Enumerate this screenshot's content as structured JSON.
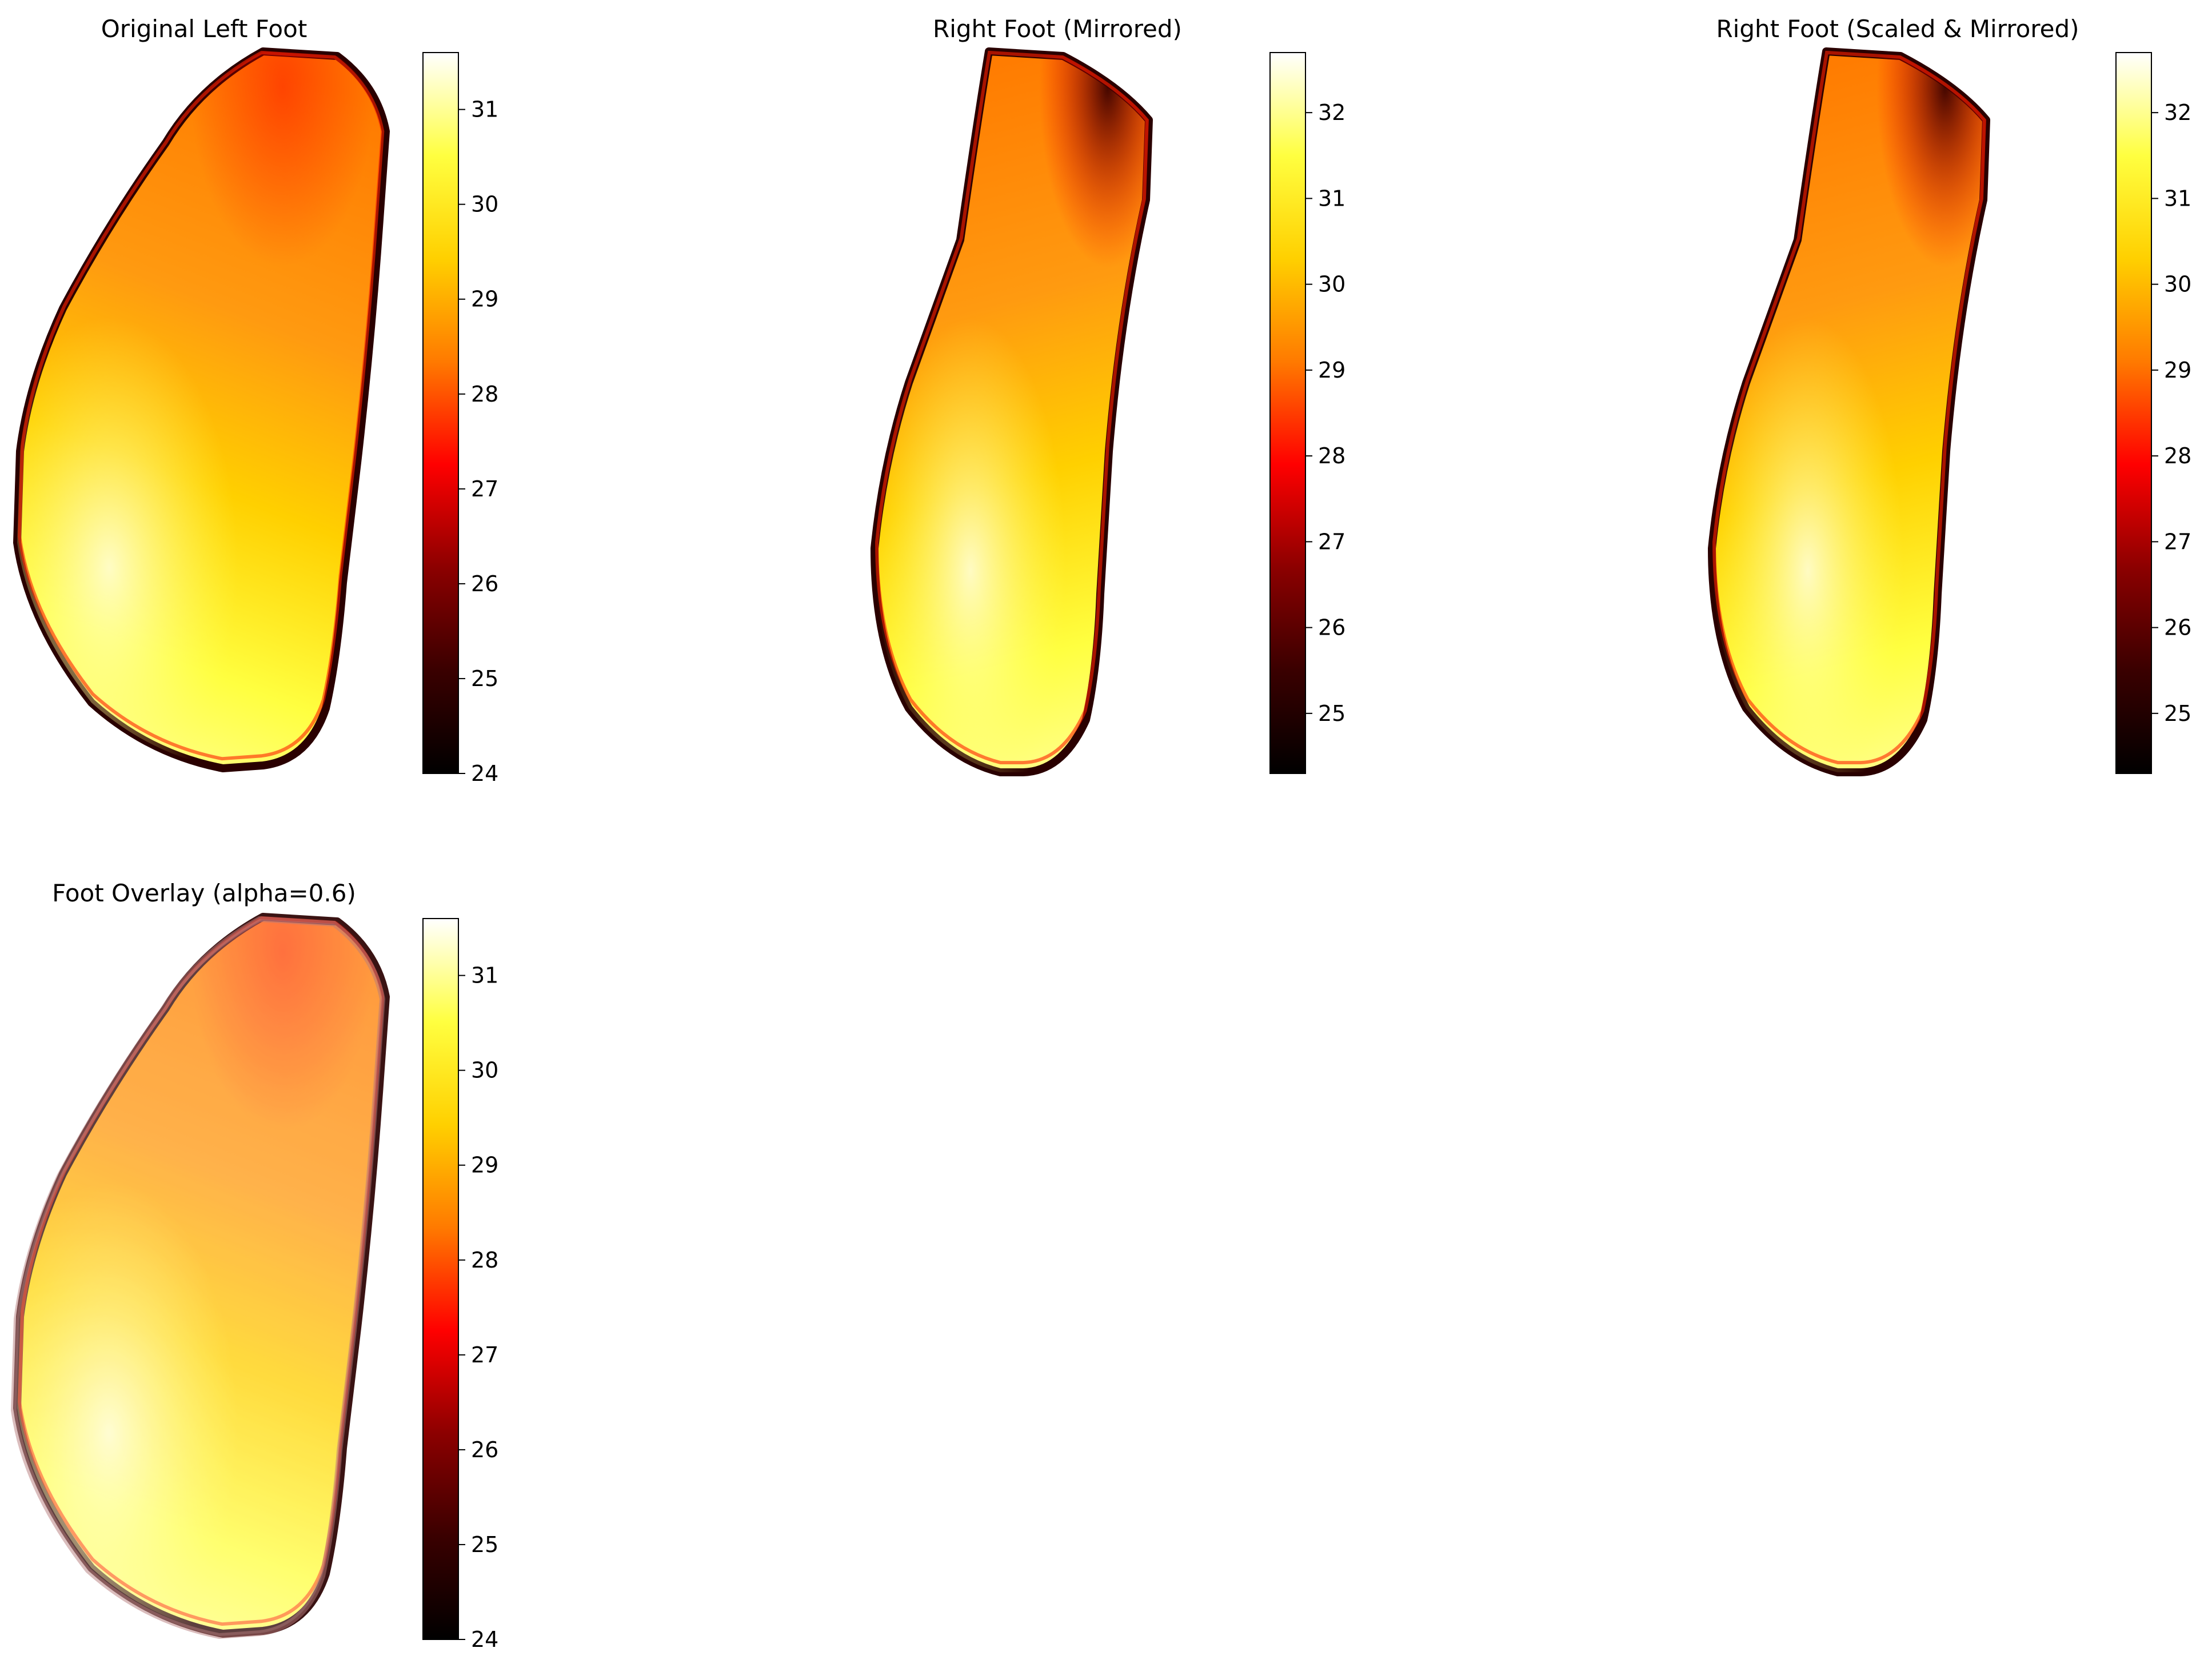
{
  "chart_data": [
    {
      "type": "heatmap",
      "title": "Original Left Foot",
      "colormap": "hot",
      "colorbar": {
        "vmin": 24.0,
        "vmax": 31.6,
        "ticks": [
          24,
          25,
          26,
          27,
          28,
          29,
          30,
          31
        ]
      },
      "orientation": "left",
      "overlay": false,
      "axes": "off"
    },
    {
      "type": "heatmap",
      "title": "Right Foot (Mirrored)",
      "colormap": "hot",
      "colorbar": {
        "vmin": 24.3,
        "vmax": 32.7,
        "ticks": [
          25,
          26,
          27,
          28,
          29,
          30,
          31,
          32
        ]
      },
      "orientation": "mirrored",
      "overlay": false,
      "axes": "off"
    },
    {
      "type": "heatmap",
      "title": "Right Foot (Scaled & Mirrored)",
      "colormap": "hot",
      "colorbar": {
        "vmin": 24.3,
        "vmax": 32.7,
        "ticks": [
          25,
          26,
          27,
          28,
          29,
          30,
          31,
          32
        ]
      },
      "orientation": "mirrored",
      "overlay": false,
      "axes": "off"
    },
    {
      "type": "heatmap",
      "title": "Foot Overlay (alpha=0.6)",
      "colormap": "hot",
      "colorbar": {
        "vmin": 24.0,
        "vmax": 31.6,
        "ticks": [
          24,
          25,
          26,
          27,
          28,
          29,
          30,
          31
        ]
      },
      "orientation": "left",
      "overlay": true,
      "alpha": 0.6,
      "axes": "off"
    }
  ],
  "colors": {
    "hot_stops": [
      "#000000",
      "#3a0000",
      "#8c0000",
      "#ff0000",
      "#ff7a00",
      "#ffd000",
      "#ffff40",
      "#ffffff"
    ],
    "edge": "#000000"
  }
}
